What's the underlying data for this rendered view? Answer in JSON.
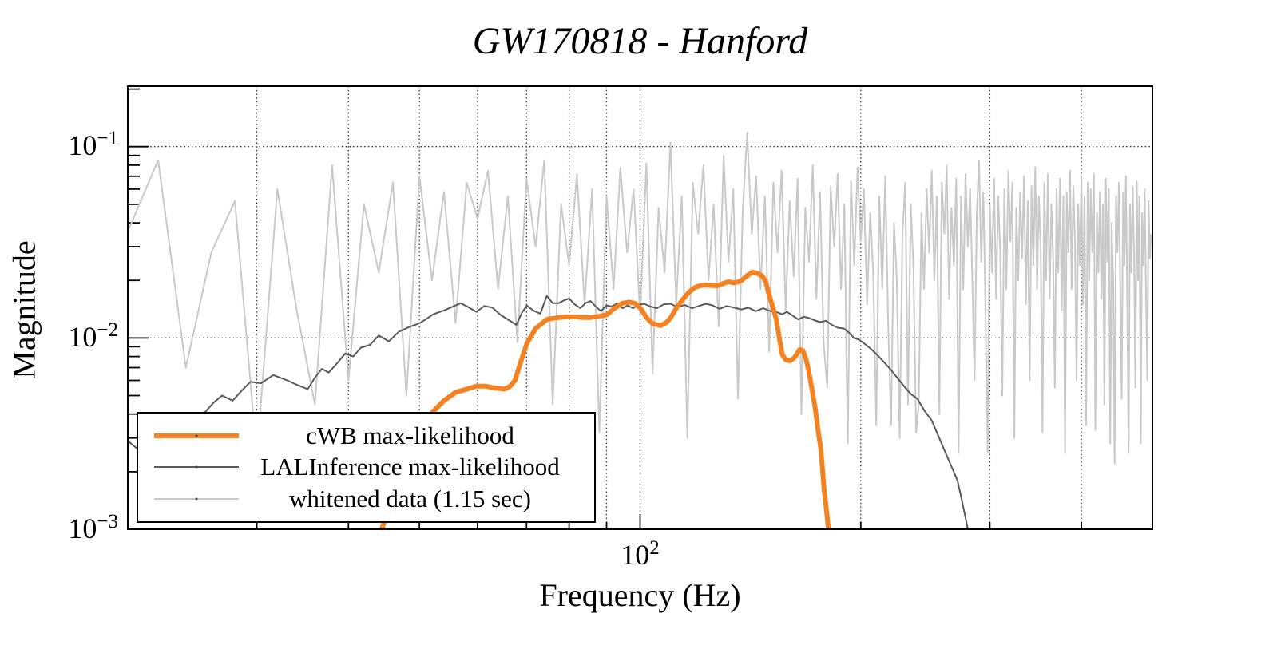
{
  "title": "GW170818 - Hanford",
  "axes": {
    "ylabel": "Magnitude",
    "xlabel": "Frequency (Hz)",
    "y_ticks": [
      {
        "base": "10",
        "exp": "−1"
      },
      {
        "base": "10",
        "exp": "−2"
      },
      {
        "base": "10",
        "exp": "−3"
      }
    ],
    "x_ticks": [
      {
        "base": "10",
        "exp": "2"
      }
    ]
  },
  "legend": {
    "entries": [
      {
        "label": "cWB max-likelihood",
        "color": "#f58220",
        "line_width": 6
      },
      {
        "label": "LALInference max-likelihood",
        "color": "#5a5a5a",
        "line_width": 2
      },
      {
        "label": "whitened data (1.15 sec)",
        "color": "#c9c9c9",
        "line_width": 2
      }
    ]
  },
  "chart_data": {
    "type": "line",
    "title": "GW170818 - Hanford",
    "xlabel": "Frequency (Hz)",
    "ylabel": "Magnitude",
    "xscale": "log",
    "yscale": "log",
    "xlim": [
      20,
      500
    ],
    "ylim": [
      0.001,
      0.207
    ],
    "grid": true,
    "x_gridlines": [
      30,
      40,
      50,
      60,
      70,
      80,
      90,
      100,
      200,
      300,
      400
    ],
    "y_gridlines": [
      0.1,
      0.01
    ],
    "x_major_ticks": [
      100
    ],
    "x_minor_ticks": [
      30,
      40,
      50,
      60,
      70,
      80,
      90,
      200,
      300,
      400
    ],
    "y_major_ticks": [
      0.1,
      0.01,
      0.001
    ],
    "y_minor_ticks": [
      0.2,
      0.09,
      0.08,
      0.07,
      0.06,
      0.05,
      0.04,
      0.03,
      0.02,
      0.009,
      0.008,
      0.007,
      0.006,
      0.005,
      0.004,
      0.003,
      0.002
    ],
    "legend_position": "lower left",
    "series": [
      {
        "name": "whitened data (1.15 sec)",
        "color": "#c9c9c9",
        "width": 2,
        "f_start": 20,
        "f_step": 2,
        "values": [
          0.036,
          0.085,
          0.007,
          0.028,
          0.052,
          0.0024,
          0.06,
          0.014,
          0.0045,
          0.08,
          0.006,
          0.05,
          0.022,
          0.065,
          0.005,
          0.07,
          0.02,
          0.058,
          0.012,
          0.065,
          0.042,
          0.075,
          0.018,
          0.055,
          0.0095,
          0.068,
          0.03,
          0.085,
          0.0045,
          0.05,
          0.024,
          0.072,
          0.015,
          0.06,
          0.0032,
          0.055,
          0.018,
          0.078,
          0.028,
          0.06,
          0.013,
          0.082,
          0.0065,
          0.048,
          0.022,
          0.105,
          0.015,
          0.055,
          0.003,
          0.065,
          0.035,
          0.08,
          0.02,
          0.05,
          0.0115,
          0.09,
          0.025,
          0.06,
          0.0048,
          0.045,
          0.118,
          0.035,
          0.07,
          0.018,
          0.055,
          0.0085,
          0.065,
          0.028,
          0.075,
          0.014,
          0.052,
          0.021,
          0.068,
          0.004,
          0.048,
          0.025,
          0.08,
          0.016,
          0.058,
          0.0095,
          0.0055,
          0.062,
          0.03,
          0.072,
          0.018,
          0.05,
          0.0028,
          0.066,
          0.024,
          0.078,
          0.032,
          0.06,
          0.015,
          0.045,
          0.022,
          0.0035,
          0.055,
          0.018,
          0.07,
          0.012,
          0.0035,
          0.04,
          0.02,
          0.003,
          0.035,
          0.065,
          0.0045,
          0.05,
          0.023,
          0.0032,
          0.0045,
          0.045,
          0.018,
          0.06,
          0.028,
          0.075,
          0.02,
          0.055,
          0.004,
          0.065,
          0.035,
          0.08,
          0.016,
          0.048,
          0.024,
          0.068,
          0.0025,
          0.055,
          0.018,
          0.072,
          0.03,
          0.06,
          0.02,
          0.006,
          0.045,
          0.085,
          0.025,
          0.058,
          0.014,
          0.0025,
          0.05,
          0.022,
          0.068,
          0.016,
          0.055,
          0.028,
          0.005,
          0.06,
          0.018,
          0.075,
          0.032,
          0.065,
          0.003,
          0.048,
          0.02,
          0.058,
          0.026,
          0.07,
          0.015,
          0.052,
          0.006,
          0.062,
          0.024,
          0.078,
          0.018,
          0.055,
          0.03,
          0.0032,
          0.065,
          0.02,
          0.072,
          0.016,
          0.05,
          0.026,
          0.0055,
          0.06,
          0.022,
          0.068,
          0.014,
          0.055,
          0.0025,
          0.058,
          0.028,
          0.075,
          0.018,
          0.062,
          0.032,
          0.006,
          0.05,
          0.024,
          0.07,
          0.015,
          0.055,
          0.0035,
          0.065,
          0.02,
          0.06,
          0.028,
          0.072,
          0.0033,
          0.045,
          0.022,
          0.058,
          0.016,
          0.05,
          0.0045,
          0.068,
          0.025,
          0.06,
          0.0028,
          0.04,
          0.02,
          0.0022,
          0.055,
          0.028,
          0.065,
          0.018,
          0.0048,
          0.058,
          0.024,
          0.07,
          0.016,
          0.0025,
          0.05,
          0.022,
          0.062,
          0.028,
          0.0055,
          0.066,
          0.02,
          0.055,
          0.0028,
          0.045,
          0.024,
          0.06,
          0.018,
          0.006,
          0.052,
          0.026,
          0.035
        ]
      },
      {
        "name": "LALInference max-likelihood",
        "color": "#5a5a5a",
        "width": 2,
        "points": [
          [
            20,
            0.0029
          ],
          [
            20.7,
            0.0026
          ],
          [
            21.5,
            0.0031
          ],
          [
            22.3,
            0.0034
          ],
          [
            23,
            0.0033
          ],
          [
            23.8,
            0.0037
          ],
          [
            24.6,
            0.0039
          ],
          [
            25.5,
            0.0041
          ],
          [
            26.2,
            0.0046
          ],
          [
            26.9,
            0.005
          ],
          [
            27.8,
            0.0047
          ],
          [
            28.6,
            0.0053
          ],
          [
            29.4,
            0.0059
          ],
          [
            30.4,
            0.0058
          ],
          [
            31.6,
            0.0064
          ],
          [
            33,
            0.006
          ],
          [
            34,
            0.0057
          ],
          [
            35.2,
            0.0054
          ],
          [
            36,
            0.0062
          ],
          [
            36.8,
            0.0069
          ],
          [
            37.6,
            0.0066
          ],
          [
            38.4,
            0.0072
          ],
          [
            39.6,
            0.0083
          ],
          [
            40.6,
            0.008
          ],
          [
            41.6,
            0.0089
          ],
          [
            42.8,
            0.0092
          ],
          [
            44,
            0.0103
          ],
          [
            45.4,
            0.0096
          ],
          [
            46.9,
            0.0108
          ],
          [
            48.4,
            0.0114
          ],
          [
            49.9,
            0.0119
          ],
          [
            51,
            0.0125
          ],
          [
            52.2,
            0.0133
          ],
          [
            54.2,
            0.014
          ],
          [
            56.9,
            0.0152
          ],
          [
            58.3,
            0.0145
          ],
          [
            59.8,
            0.0137
          ],
          [
            61.3,
            0.0147
          ],
          [
            62.9,
            0.0144
          ],
          [
            64.5,
            0.0132
          ],
          [
            66,
            0.0125
          ],
          [
            67.8,
            0.0117
          ],
          [
            69,
            0.0136
          ],
          [
            70.1,
            0.0148
          ],
          [
            71.5,
            0.0139
          ],
          [
            73.1,
            0.0134
          ],
          [
            74.6,
            0.0166
          ],
          [
            76,
            0.0152
          ],
          [
            77.4,
            0.0152
          ],
          [
            78.7,
            0.0157
          ],
          [
            80,
            0.0161
          ],
          [
            81.4,
            0.015
          ],
          [
            82.9,
            0.0143
          ],
          [
            84.2,
            0.0152
          ],
          [
            85.6,
            0.0156
          ],
          [
            87,
            0.0146
          ],
          [
            88.4,
            0.0138
          ],
          [
            90,
            0.0148
          ],
          [
            91.6,
            0.0146
          ],
          [
            93,
            0.0152
          ],
          [
            94.6,
            0.0143
          ],
          [
            96.2,
            0.0148
          ],
          [
            97.8,
            0.0143
          ],
          [
            99.5,
            0.0149
          ],
          [
            101.3,
            0.0151
          ],
          [
            103.3,
            0.0146
          ],
          [
            105.4,
            0.0143
          ],
          [
            107.7,
            0.015
          ],
          [
            110,
            0.0151
          ],
          [
            112.5,
            0.0145
          ],
          [
            115,
            0.0149
          ],
          [
            117.7,
            0.0143
          ],
          [
            120.3,
            0.0147
          ],
          [
            122.9,
            0.0151
          ],
          [
            125.6,
            0.0148
          ],
          [
            128.4,
            0.0142
          ],
          [
            131.3,
            0.0147
          ],
          [
            134.4,
            0.0144
          ],
          [
            137.4,
            0.0141
          ],
          [
            140.5,
            0.0144
          ],
          [
            143.8,
            0.0138
          ],
          [
            147.2,
            0.0143
          ],
          [
            150.6,
            0.0138
          ],
          [
            154.1,
            0.0136
          ],
          [
            156.3,
            0.0133
          ],
          [
            158.6,
            0.0137
          ],
          [
            161.4,
            0.0131
          ],
          [
            164.3,
            0.0125
          ],
          [
            167.2,
            0.0129
          ],
          [
            170.2,
            0.0127
          ],
          [
            172.7,
            0.0124
          ],
          [
            176,
            0.0121
          ],
          [
            179.3,
            0.0123
          ],
          [
            182.7,
            0.0117
          ],
          [
            186.2,
            0.0113
          ],
          [
            189.8,
            0.0112
          ],
          [
            193,
            0.0106
          ],
          [
            195.8,
            0.01
          ],
          [
            199,
            0.0098
          ],
          [
            203.3,
            0.0092
          ],
          [
            207,
            0.0087
          ],
          [
            211,
            0.0081
          ],
          [
            215,
            0.0075
          ],
          [
            220,
            0.0068
          ],
          [
            225,
            0.0061
          ],
          [
            230,
            0.0055
          ],
          [
            234,
            0.0051
          ],
          [
            239,
            0.0048
          ],
          [
            244,
            0.0042
          ],
          [
            250,
            0.0037
          ],
          [
            255,
            0.0031
          ],
          [
            260,
            0.0026
          ],
          [
            265,
            0.0022
          ],
          [
            271,
            0.0018
          ],
          [
            275,
            0.0014
          ],
          [
            280,
            0.001
          ]
        ]
      },
      {
        "name": "cWB max-likelihood",
        "color": "#f58220",
        "width": 6,
        "points": [
          [
            44.4,
            0.001
          ],
          [
            45.5,
            0.0013
          ],
          [
            47,
            0.0018
          ],
          [
            48.5,
            0.0024
          ],
          [
            50,
            0.003
          ],
          [
            52.1,
            0.0041
          ],
          [
            54,
            0.0047
          ],
          [
            56,
            0.0052
          ],
          [
            58,
            0.0054
          ],
          [
            59.8,
            0.0056
          ],
          [
            61.5,
            0.0056
          ],
          [
            63,
            0.0055
          ],
          [
            65.3,
            0.0054
          ],
          [
            66.5,
            0.0056
          ],
          [
            67.5,
            0.006
          ],
          [
            68.5,
            0.0072
          ],
          [
            70.1,
            0.0094
          ],
          [
            72,
            0.0112
          ],
          [
            74.6,
            0.0125
          ],
          [
            77.4,
            0.0128
          ],
          [
            79.5,
            0.0129
          ],
          [
            81.4,
            0.0129
          ],
          [
            83.5,
            0.0128
          ],
          [
            85.6,
            0.0128
          ],
          [
            88,
            0.013
          ],
          [
            90,
            0.0132
          ],
          [
            92.3,
            0.0143
          ],
          [
            94.6,
            0.0152
          ],
          [
            96.5,
            0.0154
          ],
          [
            98.3,
            0.0152
          ],
          [
            100.3,
            0.0142
          ],
          [
            102,
            0.0128
          ],
          [
            104,
            0.0119
          ],
          [
            106.7,
            0.0116
          ],
          [
            108.5,
            0.012
          ],
          [
            110,
            0.0127
          ],
          [
            112,
            0.0143
          ],
          [
            114.2,
            0.0158
          ],
          [
            116.5,
            0.0173
          ],
          [
            118.6,
            0.0183
          ],
          [
            120.8,
            0.0188
          ],
          [
            123.1,
            0.0189
          ],
          [
            125.5,
            0.0188
          ],
          [
            127.9,
            0.0188
          ],
          [
            130,
            0.0193
          ],
          [
            132.1,
            0.0197
          ],
          [
            134,
            0.0194
          ],
          [
            136,
            0.0196
          ],
          [
            137.8,
            0.0201
          ],
          [
            140,
            0.0212
          ],
          [
            142.4,
            0.0221
          ],
          [
            144.5,
            0.0218
          ],
          [
            146.8,
            0.0211
          ],
          [
            148.5,
            0.0196
          ],
          [
            149.7,
            0.0172
          ],
          [
            151.5,
            0.0148
          ],
          [
            153.5,
            0.0124
          ],
          [
            155,
            0.0098
          ],
          [
            156.3,
            0.0082
          ],
          [
            158,
            0.0077
          ],
          [
            160.2,
            0.0076
          ],
          [
            162.5,
            0.0079
          ],
          [
            165.1,
            0.0087
          ],
          [
            166.8,
            0.0086
          ],
          [
            168.5,
            0.0077
          ],
          [
            170,
            0.0066
          ],
          [
            171.9,
            0.0052
          ],
          [
            173.5,
            0.0042
          ],
          [
            174.9,
            0.0033
          ],
          [
            176.5,
            0.0026
          ],
          [
            177.1,
            0.0022
          ],
          [
            178.3,
            0.0016
          ],
          [
            179.4,
            0.0013
          ],
          [
            180.7,
            0.001
          ]
        ]
      }
    ]
  }
}
